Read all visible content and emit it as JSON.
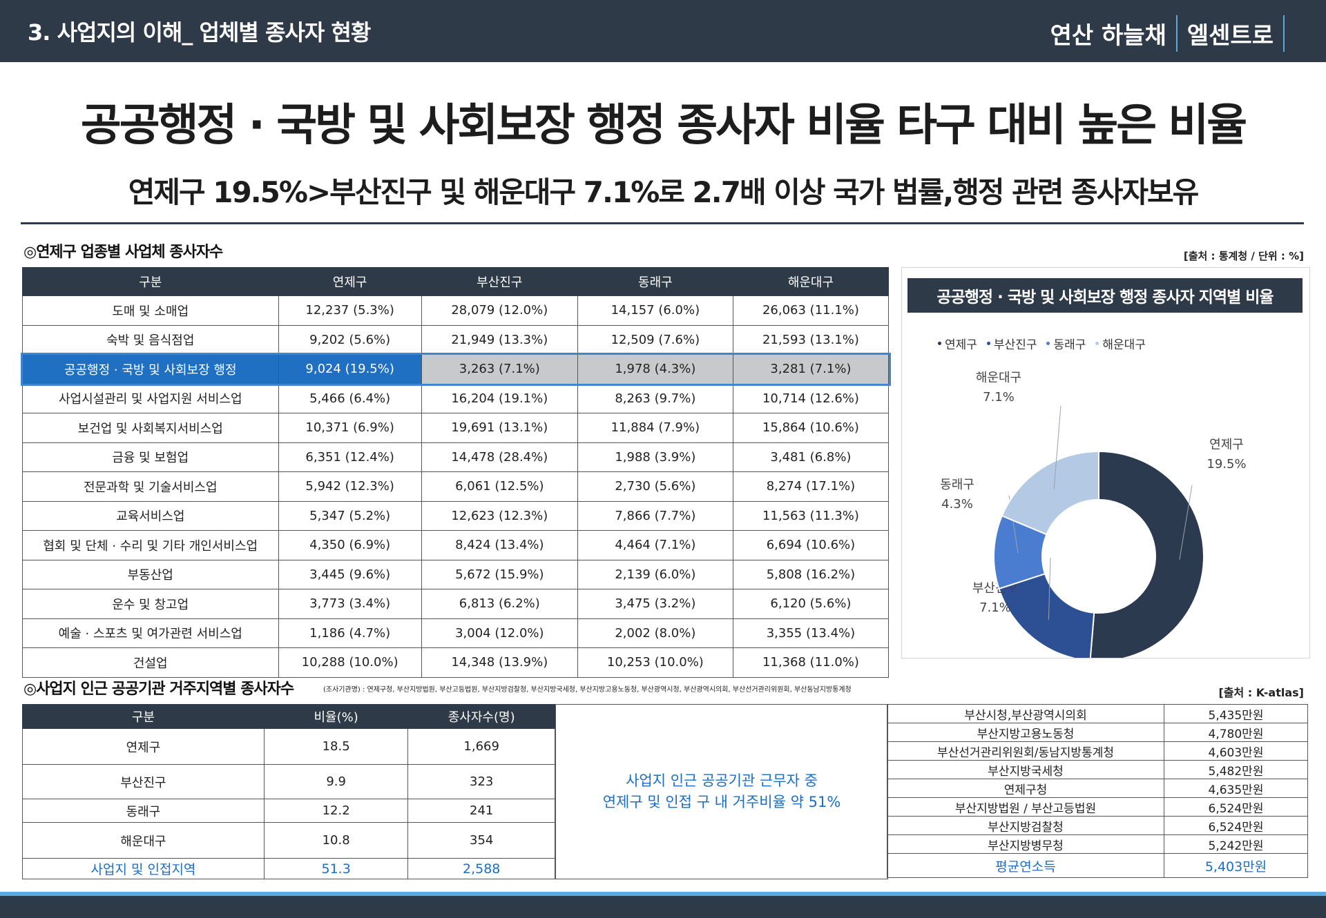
{
  "header": {
    "section": "3. 사업지의 이해_ 업체별 종사자 현황",
    "brand_a": "연산 하늘채",
    "brand_b": "엘센트로"
  },
  "headline": "공공행정 · 국방 및 사회보장 행정 종사자 비율 타구 대비 높은 비율",
  "subline": "연제구 19.5%>부산진구 및 해운대구 7.1%로 2.7배 이상 국가 법률,행정 관련 종사자보유",
  "table1": {
    "title": "◎연제구 업종별 사업체 종사자수",
    "source": "[출처 : 통계청 / 단위 : %]",
    "headers": [
      "구분",
      "연제구",
      "부산진구",
      "동래구",
      "해운대구"
    ],
    "rows": [
      [
        "도매 및 소매업",
        "12,237 (5.3%)",
        "28,079 (12.0%)",
        "14,157 (6.0%)",
        "26,063 (11.1%)"
      ],
      [
        "숙박 및 음식점업",
        "9,202 (5.6%)",
        "21,949 (13.3%)",
        "12,509 (7.6%)",
        "21,593 (13.1%)"
      ],
      [
        "공공행정 · 국방 및 사회보장 행정",
        "9,024 (19.5%)",
        "3,263 (7.1%)",
        "1,978 (4.3%)",
        "3,281 (7.1%)"
      ],
      [
        "사업시설관리 및 사업지원 서비스업",
        "5,466 (6.4%)",
        "16,204 (19.1%)",
        "8,263 (9.7%)",
        "10,714 (12.6%)"
      ],
      [
        "보건업 및 사회복지서비스업",
        "10,371 (6.9%)",
        "19,691 (13.1%)",
        "11,884 (7.9%)",
        "15,864 (10.6%)"
      ],
      [
        "금융 및 보험업",
        "6,351 (12.4%)",
        "14,478 (28.4%)",
        "1,988 (3.9%)",
        "3,481 (6.8%)"
      ],
      [
        "전문과학 및 기술서비스업",
        "5,942 (12.3%)",
        "6,061 (12.5%)",
        "2,730 (5.6%)",
        "8,274 (17.1%)"
      ],
      [
        "교육서비스업",
        "5,347 (5.2%)",
        "12,623 (12.3%)",
        "7,866 (7.7%)",
        "11,563 (11.3%)"
      ],
      [
        "협회 및 단체 · 수리 및 기타 개인서비스업",
        "4,350 (6.9%)",
        "8,424 (13.4%)",
        "4,464 (7.1%)",
        "6,694 (10.6%)"
      ],
      [
        "부동산업",
        "3,445 (9.6%)",
        "5,672 (15.9%)",
        "2,139 (6.0%)",
        "5,808 (16.2%)"
      ],
      [
        "운수 및 창고업",
        "3,773 (3.4%)",
        "6,813 (6.2%)",
        "3,475 (3.2%)",
        "6,120 (5.6%)"
      ],
      [
        "예술 · 스포츠 및 여가관련 서비스업",
        "1,186 (4.7%)",
        "3,004 (12.0%)",
        "2,002 (8.0%)",
        "3,355 (13.4%)"
      ],
      [
        "건설업",
        "10,288 (10.0%)",
        "14,348 (13.9%)",
        "10,253 (10.0%)",
        "11,368 (11.0%)"
      ]
    ]
  },
  "chart_data": {
    "type": "pie",
    "title": "공공행정 · 국방 및 사회보장 행정 종사자 지역별 비율",
    "categories": [
      "연제구",
      "부산진구",
      "동래구",
      "해운대구"
    ],
    "values": [
      19.5,
      7.1,
      4.3,
      7.1
    ],
    "value_labels": [
      "19.5%",
      "7.1%",
      "4.3%",
      "7.1%"
    ],
    "colors": [
      "#2b3a4e",
      "#2d4f94",
      "#4a7dd0",
      "#b4c9e4"
    ],
    "legend_position": "top-left"
  },
  "table2": {
    "title": "◎사업지 인근 공공기관 거주지역별 종사자수",
    "agencies_note": "(조사기관명) : 연제구청, 부산지방법원, 부산고등법원, 부산지방검찰청, 부산지방국세청, 부산지방고용노동청, 부산광역시청, 부산광역시의회, 부산선거관리위원회, 부산동남지방통계청",
    "source": "[출처 : K-atlas]",
    "headers": [
      "구분",
      "비율(%)",
      "종사자수(명)"
    ],
    "rows": [
      [
        "연제구",
        "18.5",
        "1,669"
      ],
      [
        "부산진구",
        "9.9",
        "323"
      ],
      [
        "동래구",
        "12.2",
        "241"
      ],
      [
        "해운대구",
        "10.8",
        "354"
      ]
    ],
    "total": [
      "사업지 및 인접지역",
      "51.3",
      "2,588"
    ]
  },
  "middle_note": {
    "line1": "사업지 인근 공공기관 근무자 중",
    "line2": "연제구 및 인접 구 내 거주비율 약 51%"
  },
  "table3": {
    "rows": [
      [
        "부산시청,부산광역시의회",
        "5,435만원"
      ],
      [
        "부산지방고용노동청",
        "4,780만원"
      ],
      [
        "부산선거관리위원회/동남지방통계청",
        "4,603만원"
      ],
      [
        "부산지방국세청",
        "5,482만원"
      ],
      [
        "연제구청",
        "4,635만원"
      ],
      [
        "부산지방법원 / 부산고등법원",
        "6,524만원"
      ],
      [
        "부산지방검찰청",
        "6,524만원"
      ],
      [
        "부산지방병무청",
        "5,242만원"
      ]
    ],
    "total": [
      "평균연소득",
      "5,403만원"
    ]
  }
}
